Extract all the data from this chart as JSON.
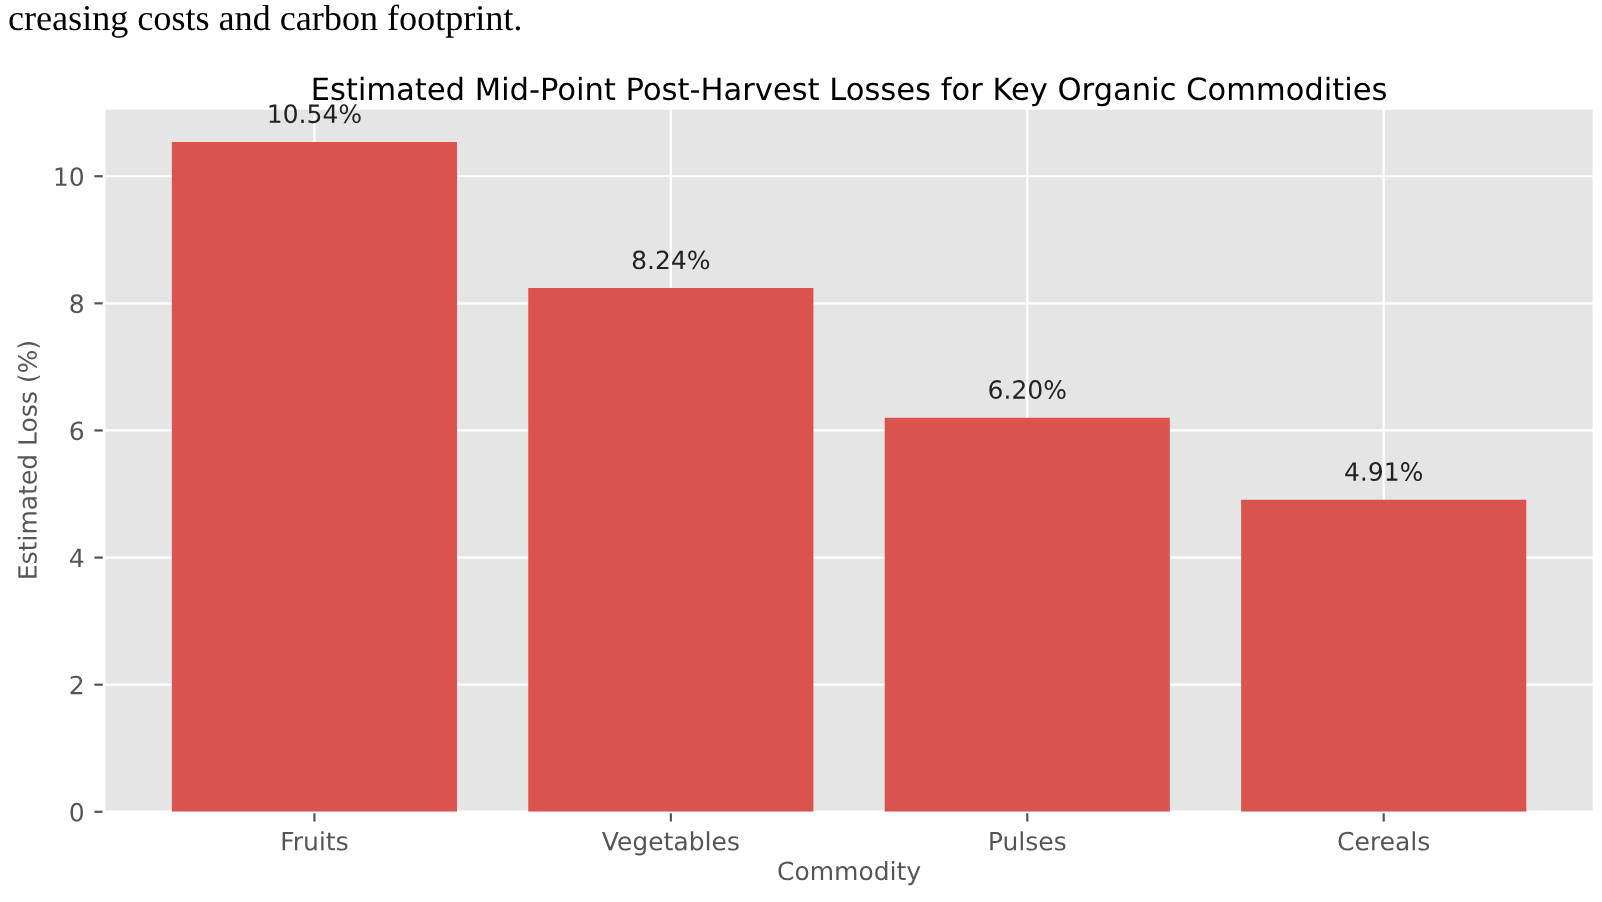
{
  "chart_data": {
    "type": "bar",
    "title": "Estimated Mid-Point Post-Harvest Losses for Key Organic Commodities",
    "xlabel": "Commodity",
    "ylabel": "Estimated Loss (%)",
    "categories": [
      "Fruits",
      "Vegetables",
      "Pulses",
      "Cereals"
    ],
    "values": [
      10.54,
      8.24,
      6.2,
      4.91
    ],
    "value_labels": [
      "10.54%",
      "8.24%",
      "6.20%",
      "4.91%"
    ],
    "color": "#db534f",
    "ylim": [
      0,
      11.07
    ],
    "yticks": [
      0,
      2,
      4,
      6,
      8,
      10
    ],
    "grid": true,
    "annotations": [
      "creasing costs and carbon footprint."
    ]
  }
}
